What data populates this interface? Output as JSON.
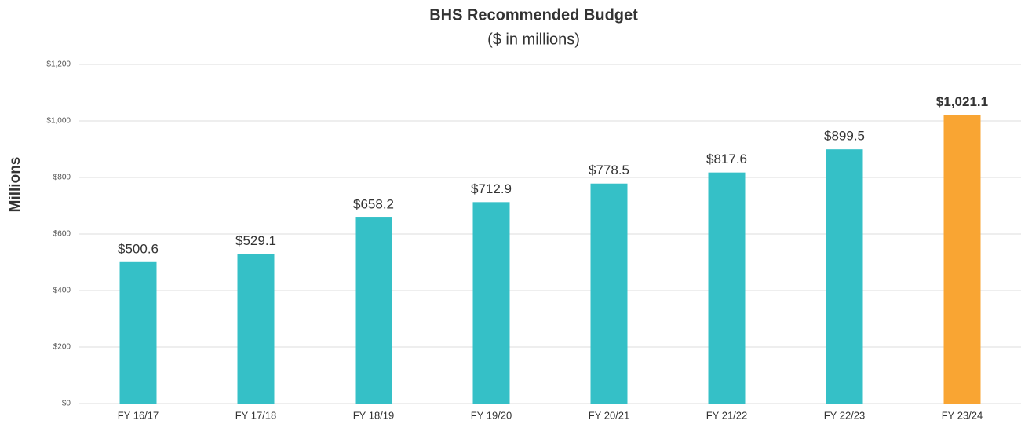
{
  "chart_data": {
    "type": "bar",
    "title": "BHS Recommended Budget",
    "subtitle": "($ in millions)",
    "y_label": "Millions",
    "categories": [
      "FY 16/17",
      "FY 17/18",
      "FY 18/19",
      "FY 19/20",
      "FY 20/21",
      "FY 21/22",
      "FY 22/23",
      "FY 23/24"
    ],
    "values": [
      500.6,
      529.1,
      658.2,
      712.9,
      778.5,
      817.6,
      899.5,
      1021.1
    ],
    "value_labels": [
      "$500.6",
      "$529.1",
      "$658.2",
      "$712.9",
      "$778.5",
      "$817.6",
      "$899.5",
      "$1,021.1"
    ],
    "color": "#35c0c7",
    "colors": [
      "#35c0c7",
      "#35c0c7",
      "#35c0c7",
      "#35c0c7",
      "#35c0c7",
      "#35c0c7",
      "#35c0c7",
      "#f9a533"
    ],
    "ylim": [
      0,
      1200
    ],
    "yticks": [
      {
        "value": 0,
        "label": "$0"
      },
      {
        "value": 200,
        "label": "$200"
      },
      {
        "value": 400,
        "label": "$400"
      },
      {
        "value": 600,
        "label": "$600"
      },
      {
        "value": 800,
        "label": "$800"
      },
      {
        "value": 1000,
        "label": "$1,000"
      },
      {
        "value": 1200,
        "label": "$1,200"
      }
    ],
    "grid": true
  }
}
